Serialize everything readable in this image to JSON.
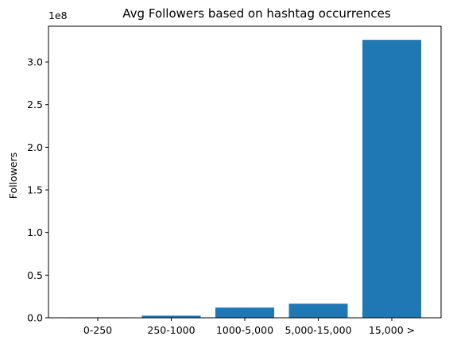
{
  "chart_data": {
    "type": "bar",
    "title": "Avg Followers based on hashtag occurrences",
    "xlabel": "",
    "ylabel": "Followers",
    "y_scale_label": "1e8",
    "categories": [
      "0-250",
      "250-1000",
      "1000-5,000",
      "5,000-15,000",
      "15,000 >"
    ],
    "values": [
      500000,
      2500000,
      12000000,
      16500000,
      326000000
    ],
    "ylim": [
      0,
      342000000
    ],
    "yticks": [
      0,
      50000000,
      100000000,
      150000000,
      200000000,
      250000000,
      300000000
    ],
    "ytick_labels": [
      "0.0",
      "0.5",
      "1.0",
      "1.5",
      "2.0",
      "2.5",
      "3.0"
    ],
    "grid": false,
    "bar_color": "#1f77b4"
  }
}
